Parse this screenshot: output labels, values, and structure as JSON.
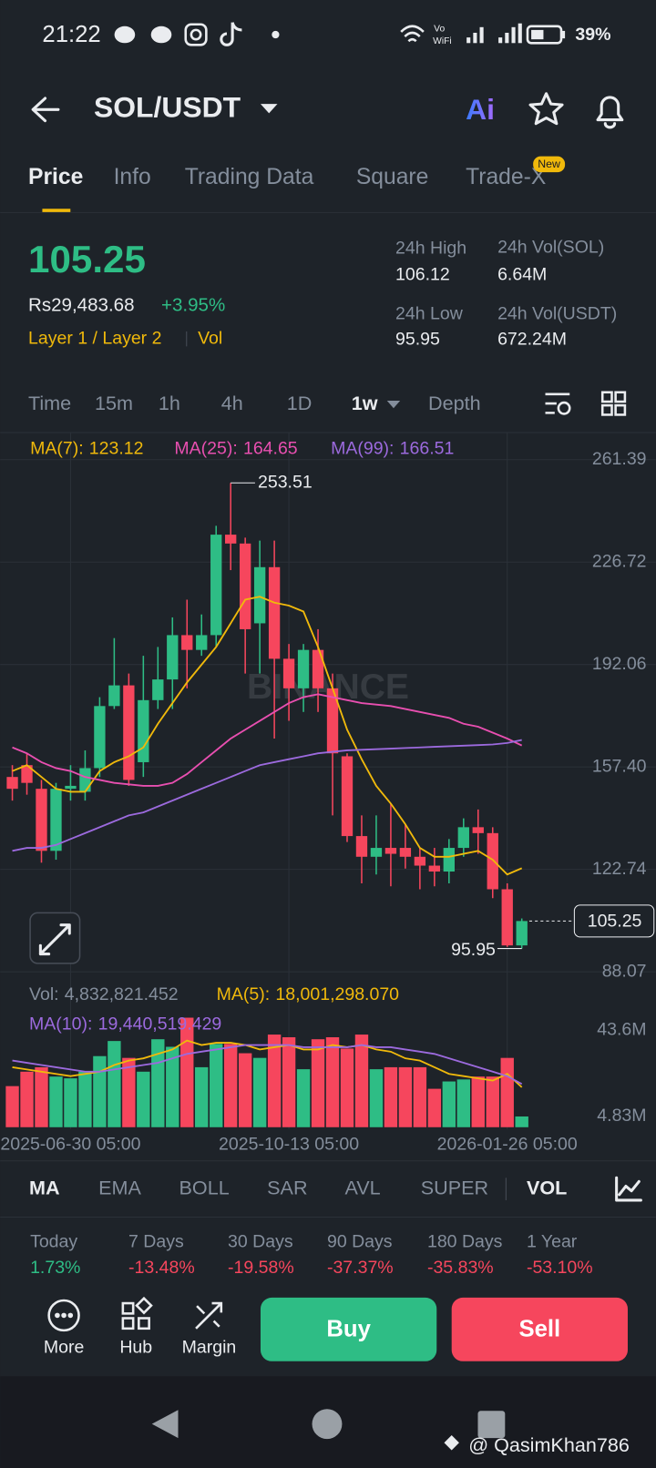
{
  "status_bar": {
    "time": "21:22",
    "network_top": "Vo",
    "network_bottom": "WiFi",
    "battery": "39%"
  },
  "header": {
    "pair": "SOL/USDT",
    "assistant": "Ai"
  },
  "tabs": [
    "Price",
    "Info",
    "Trading Data",
    "Square",
    "Trade-X"
  ],
  "new_badge": "New",
  "ticker": {
    "price": "105.25",
    "fiat_price": "Rs29,483.68",
    "change": "+3.95%",
    "tags": [
      "Layer 1 / Layer 2",
      "Vol"
    ],
    "stats": [
      {
        "label": "24h High",
        "value": "106.12"
      },
      {
        "label": "24h Vol(SOL)",
        "value": "6.64M"
      },
      {
        "label": "24h Low",
        "value": "95.95"
      },
      {
        "label": "24h Vol(USDT)",
        "value": "672.24M"
      }
    ]
  },
  "intervals": [
    "Time",
    "15m",
    "1h",
    "4h",
    "1D",
    "1w",
    "Depth"
  ],
  "chart_watermark": "BINANCE",
  "chart_data": [
    {
      "type": "candlestick",
      "up_color": "#2ebd85",
      "down_color": "#f6465d",
      "open": [
        154,
        158,
        150,
        129,
        150,
        149,
        157,
        178,
        185,
        159,
        180,
        187,
        202,
        197,
        202,
        236,
        233,
        206,
        225,
        194,
        184,
        197,
        184,
        161,
        134,
        127,
        130,
        130,
        127,
        124,
        122,
        130,
        137,
        135,
        116,
        97
      ],
      "high": [
        158,
        162,
        153,
        152,
        158,
        163,
        181,
        201,
        189,
        195,
        198,
        208,
        214,
        209,
        239,
        253.51,
        235,
        234,
        234,
        199,
        199,
        204,
        189,
        162,
        141,
        141,
        145,
        138,
        130,
        130,
        133,
        140,
        143,
        137,
        118,
        106.12
      ],
      "low": [
        146,
        148,
        125,
        126,
        146,
        146,
        154,
        177,
        151,
        154,
        177,
        177,
        184,
        195,
        198,
        224,
        189,
        189,
        167,
        173,
        176,
        176,
        141,
        132,
        118,
        121,
        117,
        123,
        116,
        117,
        118,
        127,
        128,
        113,
        96.5,
        95.95
      ],
      "close": [
        150,
        152,
        129,
        150,
        151,
        157,
        178,
        185,
        153,
        180,
        187,
        202,
        197,
        202,
        236,
        233,
        204,
        225,
        194,
        184,
        197,
        184,
        162,
        134,
        127,
        130,
        128,
        127,
        124,
        122,
        130,
        137,
        135,
        116,
        97,
        105.25
      ],
      "series": [
        {
          "name": "MA(7):",
          "color": "#f0b90b",
          "values": [
            156,
            158,
            154,
            150,
            149,
            149,
            156,
            159,
            161,
            164,
            172,
            179,
            186,
            192,
            198,
            206,
            214,
            215,
            213,
            212,
            210,
            198,
            184,
            170,
            160,
            151,
            145,
            138,
            130,
            127,
            127,
            128,
            129,
            126,
            121,
            123.12
          ]
        },
        {
          "name": "MA(25):",
          "color": "#e84fb0",
          "values": [
            164,
            162,
            159,
            157,
            156,
            154,
            153,
            152,
            151.5,
            151,
            151,
            152,
            155,
            159,
            163,
            167,
            170,
            173,
            176,
            179,
            181,
            182,
            181,
            180,
            179,
            178.5,
            178,
            177,
            176,
            175,
            174,
            172,
            171,
            169,
            167,
            164.65
          ]
        },
        {
          "name": "MA(99):",
          "color": "#9c6ade",
          "values": [
            129,
            130,
            130,
            131,
            133,
            135,
            137,
            139,
            141,
            142,
            144,
            146,
            148,
            150,
            152,
            154,
            156,
            158,
            159,
            160,
            161,
            162,
            162.5,
            163,
            163.2,
            163.4,
            163.6,
            163.8,
            164,
            164.2,
            164.4,
            164.6,
            164.8,
            165,
            165.5,
            166.51
          ]
        }
      ],
      "ylim": [
        84.9,
        270.56
      ],
      "yticks": [
        261.39,
        226.72,
        192.06,
        {
          "value": 157.4,
          "label": "157.40"
        },
        122.74,
        88.07
      ],
      "grid": true
    },
    {
      "type": "bar",
      "categories": [
        null,
        null,
        null,
        null,
        "2025-06-30 05:00",
        null,
        null,
        null,
        null,
        null,
        null,
        null,
        null,
        null,
        null,
        null,
        null,
        null,
        null,
        "2025-10-13 05:00",
        null,
        null,
        null,
        null,
        null,
        null,
        null,
        null,
        null,
        null,
        null,
        null,
        null,
        null,
        "2026-01-26 05:00",
        null
      ],
      "series": [
        {
          "name": "Vol:",
          "color": "#2ebd85",
          "values": [
            18500000,
            25000000,
            27000000,
            22800000,
            22000000,
            25000000,
            32000000,
            38800000,
            31200000,
            25000000,
            39600000,
            36200000,
            49300000,
            27000000,
            37500000,
            37500000,
            33300000,
            31200000,
            41700000,
            40500000,
            26100000,
            39600000,
            40500000,
            35400000,
            41700000,
            26100000,
            27000000,
            27000000,
            27000000,
            17300000,
            20600000,
            21500000,
            22800000,
            22800000,
            31200000,
            4832821.452
          ],
          "value_labels": [
            null,
            null,
            null,
            null,
            null,
            null,
            null,
            null,
            null,
            null,
            null,
            null,
            null,
            null,
            null,
            null,
            null,
            null,
            null,
            null,
            null,
            null,
            null,
            null,
            null,
            null,
            null,
            null,
            null,
            null,
            null,
            null,
            null,
            null,
            null,
            "4,832,821.452"
          ]
        },
        {
          "name": "MA(5):",
          "color": "#f0b90b",
          "values": [
            27000000,
            26000000,
            25000000,
            24000000,
            23000000,
            24000000,
            25000000,
            28000000,
            30000000,
            31000000,
            33000000,
            35000000,
            39000000,
            37000000,
            38000000,
            38000000,
            37000000,
            35000000,
            36000000,
            37000000,
            35000000,
            35000000,
            37000000,
            36000000,
            37000000,
            35000000,
            34000000,
            31000000,
            30000000,
            27000000,
            24000000,
            23000000,
            22000000,
            21000000,
            24000000,
            18001298.07
          ],
          "value_labels": [
            null,
            null,
            null,
            null,
            null,
            null,
            null,
            null,
            null,
            null,
            null,
            null,
            null,
            null,
            null,
            null,
            null,
            null,
            null,
            null,
            null,
            null,
            null,
            null,
            null,
            null,
            null,
            null,
            null,
            null,
            null,
            null,
            null,
            null,
            null,
            "18,001,298.070"
          ]
        },
        {
          "name": "MA(10):",
          "color": "#9c6ade",
          "values": [
            30000000,
            29000000,
            28000000,
            27000000,
            26000000,
            25000000,
            25000000,
            26000000,
            27000000,
            28000000,
            29000000,
            31000000,
            33000000,
            34000000,
            35000000,
            36000000,
            37000000,
            37000000,
            37000000,
            37000000,
            36000000,
            36000000,
            36000000,
            36000000,
            37000000,
            36000000,
            36000000,
            35000000,
            34000000,
            33000000,
            31000000,
            29000000,
            27000000,
            25000000,
            23000000,
            19440519.429
          ],
          "value_labels": [
            null,
            null,
            null,
            null,
            null,
            null,
            null,
            null,
            null,
            null,
            null,
            null,
            null,
            null,
            null,
            null,
            null,
            null,
            null,
            null,
            null,
            null,
            null,
            null,
            null,
            null,
            null,
            null,
            null,
            null,
            null,
            null,
            null,
            null,
            null,
            "19,440,519.429"
          ]
        }
      ],
      "ylim": [
        0,
        50150000
      ],
      "yticks": [
        {
          "value": 43600000,
          "label": "43.6M"
        },
        {
          "value": 4830000,
          "label": "4.83M"
        }
      ]
    }
  ],
  "indicators": [
    "MA",
    "EMA",
    "BOLL",
    "SAR",
    "AVL",
    "SUPER",
    "VOL"
  ],
  "performance": [
    {
      "period": "Today",
      "change": "1.73%"
    },
    {
      "period": "7 Days",
      "change": "-13.48%"
    },
    {
      "period": "30 Days",
      "change": "-19.58%"
    },
    {
      "period": "90 Days",
      "change": "-37.37%"
    },
    {
      "period": "180 Days",
      "change": "-35.83%"
    },
    {
      "period": "1 Year",
      "change": "-53.10%"
    }
  ],
  "actions": [
    "More",
    "Hub",
    "Margin"
  ],
  "buy": "Buy",
  "sell": "Sell",
  "watermark": "@ QasimKhan786"
}
